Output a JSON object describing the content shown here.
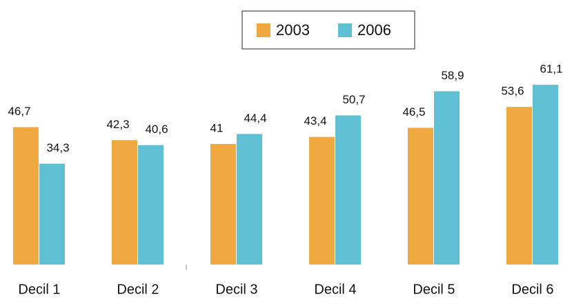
{
  "chart_data": {
    "type": "bar",
    "categories": [
      "Decil 1",
      "Decil 2",
      "Decil 3",
      "Decil 4",
      "Decil 5",
      "Decil 6"
    ],
    "series": [
      {
        "name": "2003",
        "color": "#f0a941",
        "values": [
          46.7,
          42.3,
          41,
          43.4,
          46.5,
          53.6
        ],
        "value_labels": [
          "46,7",
          "42,3",
          "41",
          "43,4",
          "46,5",
          "53,6"
        ]
      },
      {
        "name": "2006",
        "color": "#5fc0d3",
        "values": [
          34.3,
          40.6,
          44.4,
          50.7,
          58.9,
          61.1
        ],
        "value_labels": [
          "34,3",
          "40,6",
          "44,4",
          "50,7",
          "58,9",
          "61,1"
        ]
      }
    ],
    "ylim": [
      0,
      70
    ],
    "legend": "top"
  }
}
